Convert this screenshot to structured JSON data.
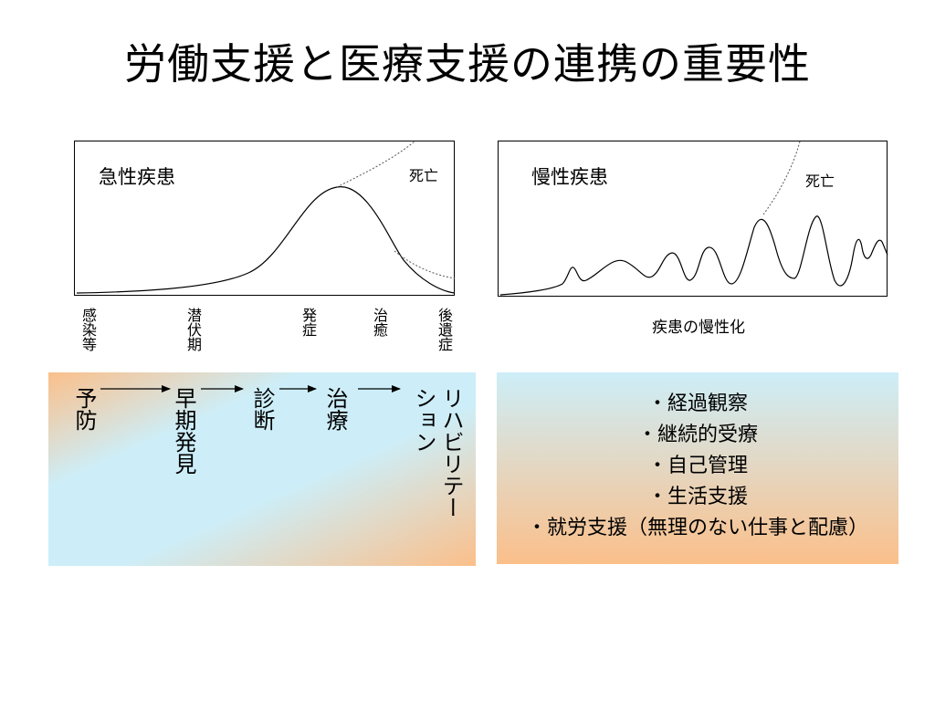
{
  "title": "労働支援と医療支援の連携の重要性",
  "acute_panel": {
    "label": "急性疾患",
    "death_label": "死亡",
    "stages": [
      "感染等",
      "潜伏期",
      "発症",
      "治癒",
      "後遺症"
    ]
  },
  "chronic_panel": {
    "label": "慢性疾患",
    "death_label": "死亡",
    "caption": "疾患の慢性化"
  },
  "acute_flow": {
    "steps": [
      "予防",
      "早期発見",
      "診断",
      "治療",
      "リハビリテーション"
    ]
  },
  "chronic_care": {
    "items": [
      "・経過観察",
      "・継続的受療",
      "・自己管理",
      "・生活支援",
      "・就労支援（無理のない仕事と配慮）"
    ]
  }
}
